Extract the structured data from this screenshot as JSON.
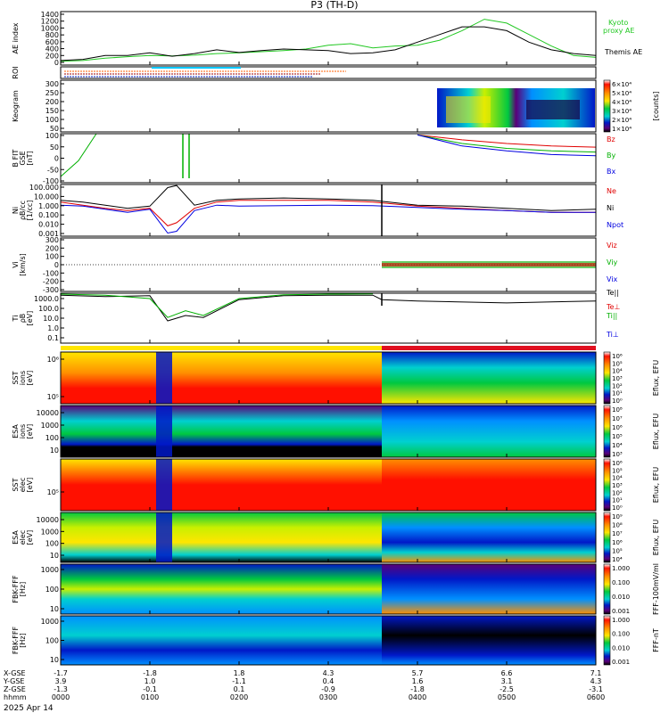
{
  "title": "P3 (TH-D)",
  "date": "2025 Apr 14",
  "orbit_rows": [
    {
      "name": "X-GSE",
      "values": [
        "-1.7",
        "-1.8",
        "1.8",
        "4.3",
        "5.7",
        "6.6",
        "7.1"
      ]
    },
    {
      "name": "Y-GSE",
      "values": [
        "3.9",
        "1.0",
        "-1.1",
        "0.4",
        "1.6",
        "3.1",
        "4.3"
      ]
    },
    {
      "name": "Z-GSE",
      "values": [
        "-1.3",
        "-0.1",
        "0.1",
        "-0.9",
        "-1.8",
        "-2.5",
        "-3.1"
      ]
    },
    {
      "name": "hhmm",
      "values": [
        "0000",
        "0100",
        "0200",
        "0300",
        "0400",
        "0500",
        "0600"
      ]
    }
  ],
  "color_bar_colors": {
    "c0": "#000000",
    "c1": "#5a0078",
    "c2": "#0018c8",
    "c3": "#0090ff",
    "c4": "#00d0d0",
    "c5": "#00c840",
    "c6": "#c8f000",
    "c7": "#ffe600",
    "c8": "#ff9000",
    "c9": "#ff1000",
    "c10": "#ffffff"
  },
  "panels": {
    "ae": {
      "ylabel": "AE index",
      "yticks": [
        "1400",
        "1200",
        "1000",
        "800",
        "600",
        "400",
        "200",
        "0"
      ],
      "legend": [
        {
          "text": "Kyoto",
          "color": "#22c822"
        },
        {
          "text": "proxy AE",
          "color": "#22c822"
        },
        {
          "text": "Themis AE",
          "color": "#000000"
        }
      ]
    },
    "roi": {
      "ylabel": "ROI"
    },
    "keogram": {
      "ylabel": "Keogram",
      "yticks": [
        "300",
        "250",
        "200",
        "150",
        "100",
        "50"
      ],
      "cbar_ticks": [
        "6×10⁴",
        "5×10⁴",
        "4×10⁴",
        "3×10⁴",
        "2×10⁴",
        "1×10⁴"
      ],
      "cbar_label": "[counts]"
    },
    "bfield": {
      "ylabel1": "B FIT",
      "ylabel2": "GSE",
      "ylabel3": "[nT]",
      "yticks": [
        "100",
        "50",
        "0",
        "-50",
        "-100"
      ],
      "legend": [
        {
          "text": "Bz",
          "color": "#e00000"
        },
        {
          "text": "By",
          "color": "#00b000"
        },
        {
          "text": "Bx",
          "color": "#0000e0"
        }
      ]
    },
    "density": {
      "ylabel1": "Ni",
      "ylabel2": "ρB/cc",
      "ylabel3": "[1/cc]",
      "yticks": [
        "100.000",
        "10.000",
        "1.000",
        "0.100",
        "0.010",
        "0.001"
      ],
      "legend": [
        {
          "text": "Ne",
          "color": "#e00000"
        },
        {
          "text": "Ni",
          "color": "#000000"
        },
        {
          "text": "Npot",
          "color": "#0000e0"
        }
      ]
    },
    "velocity": {
      "ylabel1": "Vi",
      "ylabel2": "[km/s]",
      "yticks": [
        "300",
        "200",
        "100",
        "0",
        "-100",
        "-200",
        "-300"
      ],
      "legend": [
        {
          "text": "Viz",
          "color": "#e00000"
        },
        {
          "text": "Viy",
          "color": "#00b000"
        },
        {
          "text": "Vix",
          "color": "#0000e0"
        }
      ]
    },
    "temperature": {
      "ylabel1": "Ti",
      "ylabel2": "ρB",
      "ylabel3": "[eV]",
      "yticks": [
        "1000.0",
        "100.0",
        "10.0",
        "1.0",
        "0.1"
      ],
      "legend": [
        {
          "text": "Te||",
          "color": "#000000"
        },
        {
          "text": "Te⊥",
          "color": "#e00000"
        },
        {
          "text": "Ti||",
          "color": "#00b000"
        },
        {
          "text": "Ti⊥",
          "color": "#0000e0"
        }
      ]
    },
    "sst_ion": {
      "ylabel1": "SST",
      "ylabel2": "ions",
      "ylabel3": "[eV]",
      "yticks": [
        "10⁶",
        "10⁵"
      ],
      "cbar_ticks": [
        "10⁶",
        "10⁵",
        "10⁴",
        "10³",
        "10²",
        "10¹",
        "10⁰"
      ],
      "cbar_label": "Eflux, EFU"
    },
    "esa_ion": {
      "ylabel1": "ESA",
      "ylabel2": "ions",
      "ylabel3": "[eV]",
      "yticks": [
        "10000",
        "1000",
        "100",
        "10"
      ],
      "cbar_ticks": [
        "10⁸",
        "10⁷",
        "10⁶",
        "10⁵",
        "10⁴",
        "10³"
      ],
      "cbar_label": "Eflux, EFU"
    },
    "sst_elec": {
      "ylabel1": "SST",
      "ylabel2": "elec",
      "ylabel3": "[eV]",
      "yticks": [
        "10⁵"
      ],
      "cbar_ticks": [
        "10⁶",
        "10⁵",
        "10⁴",
        "10³",
        "10²",
        "10¹",
        "10⁰"
      ],
      "cbar_label": "Eflux, EFU"
    },
    "esa_elec": {
      "ylabel1": "ESA",
      "ylabel2": "elec",
      "ylabel3": "[eV]",
      "yticks": [
        "10000",
        "1000",
        "100",
        "10"
      ],
      "cbar_ticks": [
        "10⁹",
        "10⁸",
        "10⁷",
        "10⁶",
        "10⁵",
        "10⁴"
      ],
      "cbar_label": "Eflux, EFU"
    },
    "fbk_b": {
      "ylabel": "FBK-FFF",
      "ylabel2": "[Hz]",
      "yticks": [
        "1000",
        "100",
        "10"
      ],
      "cbar_ticks": [
        "1.000",
        "0.100",
        "0.010",
        "0.001"
      ],
      "cbar_label": "FFF-100mV/ml"
    },
    "fbk_e": {
      "ylabel": "FBK-FFF",
      "ylabel2": "[Hz]",
      "yticks": [
        "1000",
        "100",
        "10"
      ],
      "cbar_ticks": [
        "1.000",
        "0.100",
        "0.010",
        "0.001"
      ],
      "cbar_label": "FFF-nT"
    }
  },
  "chart_data": [
    {
      "type": "line",
      "panel": "ae",
      "ylim": [
        0,
        1400
      ],
      "x_hours": [
        0,
        0.25,
        0.5,
        0.75,
        1.0,
        1.25,
        1.5,
        1.75,
        2.0,
        2.25,
        2.5,
        2.75,
        3.0,
        3.25,
        3.5,
        3.75,
        4.0,
        4.25,
        4.5,
        4.75,
        5.0,
        5.25,
        5.5,
        5.75,
        6.0
      ],
      "series": [
        {
          "name": "Kyoto proxy AE",
          "color": "#22c822",
          "values": [
            100,
            120,
            180,
            220,
            250,
            240,
            260,
            300,
            320,
            350,
            380,
            420,
            520,
            560,
            450,
            500,
            520,
            650,
            900,
            1200,
            1100,
            800,
            500,
            250,
            200
          ]
        },
        {
          "name": "Themis AE",
          "color": "#000000",
          "values": [
            120,
            150,
            250,
            250,
            320,
            230,
            300,
            400,
            330,
            380,
            420,
            400,
            380,
            300,
            320,
            400,
            600,
            800,
            1000,
            1000,
            900,
            600,
            400,
            300,
            250
          ]
        }
      ]
    },
    {
      "type": "line",
      "panel": "bfield",
      "ylim": [
        -100,
        100
      ],
      "x_hours": [
        0,
        0.2,
        0.4,
        3.6,
        4.0,
        4.5,
        5.0,
        5.5,
        6.0
      ],
      "series": [
        {
          "name": "Bz",
          "color": "#e00000",
          "values": [
            null,
            null,
            null,
            null,
            95,
            75,
            60,
            50,
            45
          ]
        },
        {
          "name": "By",
          "color": "#00b000",
          "values": [
            -75,
            -10,
            100,
            null,
            95,
            60,
            40,
            30,
            25
          ]
        },
        {
          "name": "Bx",
          "color": "#0000e0",
          "values": [
            null,
            null,
            null,
            null,
            95,
            50,
            30,
            15,
            10
          ]
        }
      ]
    },
    {
      "type": "line",
      "panel": "density",
      "ylim": [
        0.001,
        100
      ],
      "yscale": "log",
      "x_hours": [
        0,
        0.25,
        0.5,
        0.75,
        1.0,
        1.2,
        1.3,
        1.5,
        1.75,
        2.0,
        2.5,
        3.0,
        3.5,
        4.0,
        4.5,
        5.0,
        5.5,
        6.0
      ],
      "series": [
        {
          "name": "Ne",
          "color": "#e00000",
          "values": [
            2,
            1,
            0.5,
            0.3,
            0.5,
            0.01,
            0.02,
            0.5,
            2,
            3,
            3,
            3,
            2,
            0.8,
            0.5,
            0.3,
            0.2,
            0.2
          ]
        },
        {
          "name": "Ni",
          "color": "#000000",
          "values": [
            3,
            2,
            1,
            0.5,
            0.8,
            50,
            80,
            1,
            3,
            4,
            5,
            4,
            3,
            1,
            0.8,
            0.5,
            0.3,
            0.4
          ]
        },
        {
          "name": "Npot",
          "color": "#0000e0",
          "values": [
            1,
            0.8,
            0.4,
            0.2,
            0.4,
            0.002,
            0.003,
            0.3,
            1,
            0.8,
            0.9,
            1,
            0.9,
            0.6,
            0.4,
            0.3,
            0.2,
            0.2
          ]
        }
      ]
    },
    {
      "type": "line",
      "panel": "temperature",
      "ylim": [
        0.1,
        3000
      ],
      "yscale": "log",
      "x_hours": [
        0,
        0.5,
        1.0,
        1.2,
        1.4,
        1.6,
        2.0,
        2.5,
        3.0,
        3.5,
        3.6,
        4.0,
        5.0,
        5.5,
        6.0
      ],
      "series": [
        {
          "name": "Te||",
          "color": "#000000",
          "values": [
            2000,
            1500,
            1800,
            10,
            30,
            20,
            800,
            1800,
            2000,
            2000,
            800,
            600,
            400,
            500,
            600
          ]
        },
        {
          "name": "Ti||",
          "color": "#00b000",
          "values": [
            2500,
            2000,
            1000,
            20,
            80,
            30,
            1000,
            2200,
            2500,
            2600,
            null,
            null,
            null,
            null,
            null
          ]
        }
      ]
    },
    {
      "type": "heatmap",
      "panel": "spectrograms",
      "x_hours": [
        0,
        6
      ],
      "boundary_hour": 3.6,
      "dropout_hour": 1.15
    }
  ]
}
